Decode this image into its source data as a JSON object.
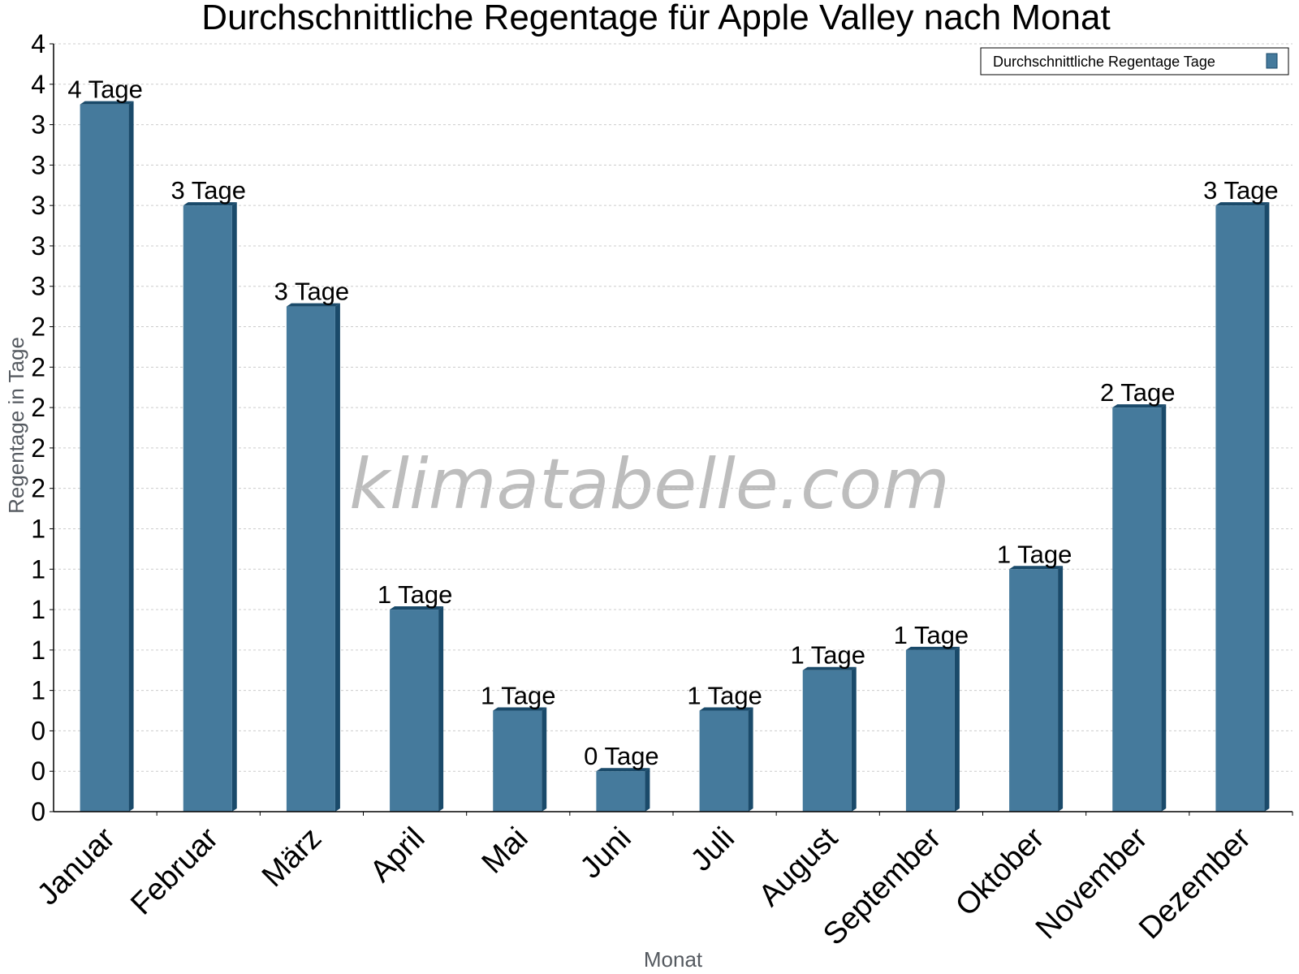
{
  "chart_data": {
    "type": "bar",
    "title": "Durchschnittliche Regentage für Apple Valley nach Monat",
    "xlabel": "Monat",
    "ylabel": "Regentage in Tage",
    "categories": [
      "Januar",
      "Februar",
      "März",
      "April",
      "Mai",
      "Juni",
      "Juli",
      "August",
      "September",
      "Oktober",
      "November",
      "Dezember"
    ],
    "series": [
      {
        "name": "Durchschnittliche Regentage Tage",
        "values": [
          3.5,
          3.0,
          2.5,
          1.0,
          0.5,
          0.2,
          0.5,
          0.7,
          0.8,
          1.2,
          2.0,
          3.0
        ],
        "labels": [
          "4 Tage",
          "3 Tage",
          "3 Tage",
          "1 Tage",
          "1 Tage",
          "0 Tage",
          "1 Tage",
          "1 Tage",
          "1 Tage",
          "1 Tage",
          "2 Tage",
          "3 Tage"
        ]
      }
    ],
    "ylim": [
      0,
      3.8
    ],
    "yticks": [
      0,
      0.2,
      0.4,
      0.6,
      0.8,
      1.0,
      1.2,
      1.4,
      1.6,
      1.8,
      2.0,
      2.2,
      2.4,
      2.6,
      2.8,
      3.0,
      3.2,
      3.4,
      3.6,
      3.8
    ],
    "ytick_labels": [
      "0",
      "0",
      "0",
      "1",
      "1",
      "1",
      "1",
      "1",
      "2",
      "2",
      "2",
      "2",
      "2",
      "3",
      "3",
      "3",
      "3",
      "3",
      "4",
      "4"
    ],
    "grid": true,
    "legend_position": "top-right",
    "colors": {
      "bar_face": "#457a9c",
      "bar_side": "#1a4a6a",
      "grid": "#cccccc"
    }
  },
  "watermark": "klimatabelle.com"
}
